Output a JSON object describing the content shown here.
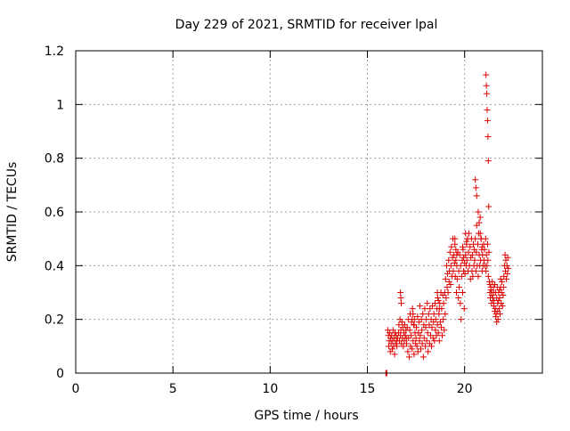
{
  "chart_data": {
    "type": "scatter",
    "title": "Day 229 of 2021, SRMTID for receiver lpal",
    "xlabel": "GPS time / hours",
    "ylabel": "SRMTID / TECUs",
    "xlim": [
      0,
      24
    ],
    "ylim": [
      0,
      1.2
    ],
    "grid": true,
    "x_ticks": [
      0,
      5,
      10,
      15,
      20
    ],
    "x_tick_labels": [
      "0",
      "5",
      "10",
      "15",
      "20"
    ],
    "y_ticks": [
      0,
      0.2,
      0.4,
      0.6,
      0.8,
      1.0,
      1.2
    ],
    "y_tick_labels": [
      "0",
      "0.2",
      "0.4",
      "0.6",
      "0.8",
      "1",
      "1.2"
    ],
    "marker": "plus",
    "marker_color": "#dd0000",
    "series": [
      {
        "name": "SRMTID",
        "color": "#dd0000",
        "x": [
          15.95,
          15.97,
          16.0,
          16.05,
          16.08,
          16.1,
          16.12,
          16.15,
          16.18,
          16.2,
          16.22,
          16.25,
          16.28,
          16.3,
          16.32,
          16.35,
          16.38,
          16.4,
          16.42,
          16.45,
          16.48,
          16.5,
          16.52,
          16.55,
          16.6,
          16.62,
          16.65,
          16.68,
          16.7,
          16.72,
          16.75,
          16.78,
          16.8,
          16.82,
          16.85,
          16.88,
          16.9,
          16.92,
          16.95,
          16.98,
          17.0,
          17.02,
          17.05,
          17.08,
          17.1,
          17.12,
          17.15,
          17.18,
          17.2,
          17.22,
          17.25,
          17.28,
          17.3,
          17.32,
          17.35,
          17.38,
          17.4,
          17.42,
          17.45,
          17.48,
          17.5,
          17.52,
          17.55,
          17.58,
          17.6,
          17.62,
          17.65,
          17.68,
          17.7,
          17.72,
          17.75,
          17.78,
          17.8,
          17.82,
          17.85,
          17.88,
          17.9,
          17.92,
          17.95,
          17.98,
          18.0,
          18.02,
          18.05,
          18.08,
          18.1,
          18.12,
          18.15,
          18.18,
          18.2,
          18.22,
          18.25,
          18.28,
          18.3,
          18.32,
          18.35,
          18.38,
          18.4,
          18.42,
          18.45,
          18.48,
          18.5,
          18.52,
          18.55,
          18.58,
          18.6,
          18.62,
          18.65,
          18.68,
          18.7,
          18.72,
          18.75,
          18.78,
          18.8,
          18.82,
          18.85,
          18.88,
          18.9,
          18.92,
          18.95,
          18.98,
          19.0,
          19.02,
          19.05,
          19.08,
          19.1,
          19.12,
          19.15,
          19.18,
          19.2,
          19.22,
          19.25,
          19.28,
          19.3,
          19.32,
          19.35,
          19.38,
          19.4,
          19.42,
          19.45,
          19.48,
          19.5,
          19.52,
          19.55,
          19.58,
          19.6,
          19.62,
          19.65,
          19.68,
          19.7,
          19.72,
          19.75,
          19.78,
          19.8,
          19.82,
          19.85,
          19.88,
          19.9,
          19.92,
          19.95,
          19.98,
          20.0,
          20.02,
          20.05,
          20.08,
          20.1,
          20.12,
          20.15,
          20.18,
          20.2,
          20.22,
          20.25,
          20.28,
          20.3,
          20.32,
          20.35,
          20.38,
          20.4,
          20.42,
          20.45,
          20.48,
          20.5,
          20.52,
          20.55,
          20.58,
          20.6,
          20.62,
          20.65,
          20.68,
          20.7,
          20.72,
          20.75,
          20.78,
          20.8,
          20.82,
          20.85,
          20.88,
          20.9,
          20.92,
          20.95,
          20.98,
          21.0,
          21.02,
          21.05,
          21.08,
          21.1,
          21.12,
          21.15,
          21.18,
          21.2,
          21.22,
          21.25,
          21.28,
          21.3,
          21.32,
          21.35,
          21.38,
          21.4,
          21.42,
          21.45,
          21.48,
          21.5,
          21.52,
          21.55,
          21.58,
          21.6,
          21.62,
          21.65,
          21.68,
          21.7,
          21.72,
          21.75,
          21.78,
          21.8,
          21.82,
          21.85,
          21.88,
          21.9,
          21.92,
          21.95,
          21.98,
          22.0,
          22.02,
          22.05,
          22.08,
          22.1,
          22.12,
          22.15,
          22.18,
          22.2,
          22.22,
          22.25,
          21.1,
          21.12,
          21.14,
          21.16,
          21.18,
          21.2,
          21.22,
          21.24,
          20.55,
          20.58,
          20.62,
          20.7,
          20.75,
          20.8,
          20.85,
          20.9,
          16.7,
          16.72,
          16.74,
          17.3,
          17.35,
          17.4,
          18.6,
          18.65,
          18.7,
          19.5,
          19.55,
          19.6,
          19.9,
          19.95,
          20.05,
          20.1,
          21.3,
          21.35,
          21.4,
          21.45,
          21.5,
          21.55,
          21.6,
          21.65,
          21.7,
          21.75,
          21.8,
          21.85
        ],
        "y": [
          0.0,
          0.0,
          0.0,
          0.16,
          0.14,
          0.1,
          0.12,
          0.15,
          0.08,
          0.13,
          0.11,
          0.14,
          0.09,
          0.12,
          0.16,
          0.1,
          0.13,
          0.07,
          0.15,
          0.11,
          0.14,
          0.12,
          0.1,
          0.13,
          0.15,
          0.18,
          0.12,
          0.2,
          0.14,
          0.16,
          0.11,
          0.19,
          0.13,
          0.17,
          0.1,
          0.15,
          0.12,
          0.18,
          0.14,
          0.16,
          0.13,
          0.11,
          0.17,
          0.08,
          0.2,
          0.13,
          0.06,
          0.16,
          0.22,
          0.1,
          0.14,
          0.19,
          0.09,
          0.24,
          0.12,
          0.18,
          0.07,
          0.2,
          0.15,
          0.11,
          0.13,
          0.17,
          0.1,
          0.21,
          0.08,
          0.15,
          0.19,
          0.12,
          0.25,
          0.14,
          0.09,
          0.2,
          0.16,
          0.11,
          0.22,
          0.06,
          0.18,
          0.13,
          0.24,
          0.1,
          0.17,
          0.2,
          0.12,
          0.26,
          0.15,
          0.08,
          0.22,
          0.18,
          0.11,
          0.24,
          0.14,
          0.2,
          0.1,
          0.17,
          0.25,
          0.13,
          0.19,
          0.22,
          0.12,
          0.26,
          0.16,
          0.2,
          0.14,
          0.24,
          0.18,
          0.28,
          0.15,
          0.22,
          0.12,
          0.26,
          0.19,
          0.3,
          0.17,
          0.24,
          0.14,
          0.29,
          0.2,
          0.26,
          0.16,
          0.3,
          0.22,
          0.35,
          0.28,
          0.4,
          0.32,
          0.37,
          0.3,
          0.42,
          0.34,
          0.38,
          0.45,
          0.33,
          0.4,
          0.47,
          0.36,
          0.43,
          0.5,
          0.38,
          0.44,
          0.41,
          0.48,
          0.36,
          0.42,
          0.3,
          0.4,
          0.35,
          0.45,
          0.28,
          0.38,
          0.32,
          0.44,
          0.26,
          0.4,
          0.2,
          0.36,
          0.42,
          0.3,
          0.46,
          0.38,
          0.24,
          0.41,
          0.37,
          0.44,
          0.4,
          0.48,
          0.42,
          0.5,
          0.38,
          0.45,
          0.52,
          0.4,
          0.47,
          0.35,
          0.43,
          0.5,
          0.38,
          0.44,
          0.36,
          0.48,
          0.4,
          0.46,
          0.42,
          0.5,
          0.38,
          0.45,
          0.55,
          0.4,
          0.48,
          0.36,
          0.52,
          0.44,
          0.4,
          0.58,
          0.42,
          0.5,
          0.46,
          0.38,
          0.44,
          0.4,
          0.48,
          0.42,
          0.46,
          0.4,
          0.5,
          0.38,
          0.44,
          0.4,
          0.48,
          0.42,
          0.36,
          0.45,
          0.34,
          0.3,
          0.28,
          0.32,
          0.26,
          0.3,
          0.34,
          0.28,
          0.32,
          0.3,
          0.27,
          0.33,
          0.24,
          0.3,
          0.22,
          0.28,
          0.32,
          0.26,
          0.2,
          0.3,
          0.24,
          0.28,
          0.22,
          0.32,
          0.26,
          0.3,
          0.34,
          0.25,
          0.29,
          0.32,
          0.36,
          0.4,
          0.44,
          0.38,
          0.42,
          0.35,
          0.4,
          0.37,
          0.43,
          0.39,
          1.11,
          1.07,
          1.04,
          0.98,
          0.94,
          0.88,
          0.79,
          0.62,
          0.72,
          0.69,
          0.66,
          0.6,
          0.56,
          0.52,
          0.5,
          0.47,
          0.3,
          0.28,
          0.26,
          0.2,
          0.22,
          0.18,
          0.3,
          0.27,
          0.24,
          0.5,
          0.46,
          0.44,
          0.47,
          0.43,
          0.52,
          0.49,
          0.33,
          0.31,
          0.29,
          0.27,
          0.25,
          0.23,
          0.21,
          0.19,
          0.23,
          0.27,
          0.31,
          0.35
        ]
      }
    ]
  }
}
